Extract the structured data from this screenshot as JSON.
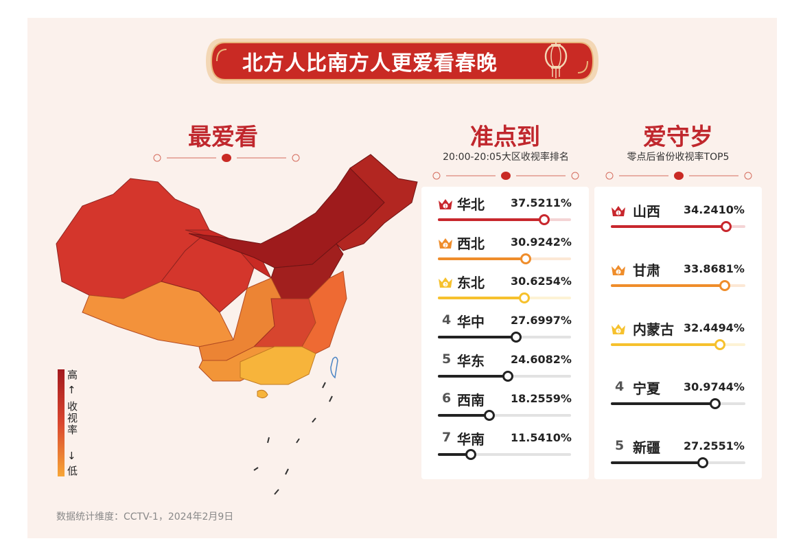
{
  "title": "北方人比南方人更爱看春晚",
  "map_section": {
    "title": "最爱看",
    "legend_high": "高",
    "legend_label": "收视率",
    "legend_low": "低",
    "legend_colors": [
      "#a3191e",
      "#d9462f",
      "#f7a637"
    ]
  },
  "footnote": "数据统计维度：CCTV-1，2024年2月9日",
  "chart_data": [
    {
      "type": "bar",
      "title": "准点到",
      "subtitle": "20:00-20:05大区收视率排名",
      "unit": "%",
      "categories": [
        "华北",
        "西北",
        "东北",
        "华中",
        "华东",
        "西南",
        "华南"
      ],
      "ranks": [
        "1",
        "2",
        "3",
        "4",
        "5",
        "6",
        "7"
      ],
      "values": [
        37.5211,
        30.9242,
        30.6254,
        27.6997,
        24.6082,
        18.2559,
        11.541
      ],
      "labels": [
        "37.5211%",
        "30.9242%",
        "30.6254%",
        "27.6997%",
        "24.6082%",
        "18.2559%",
        "11.5410%"
      ],
      "colors": [
        "#c8272d",
        "#ef8d2b",
        "#f6c12d",
        "#222222",
        "#222222",
        "#222222",
        "#222222"
      ]
    },
    {
      "type": "bar",
      "title": "爱守岁",
      "subtitle": "零点后省份收视率TOP5",
      "unit": "%",
      "categories": [
        "山西",
        "甘肃",
        "内蒙古",
        "宁夏",
        "新疆"
      ],
      "ranks": [
        "1",
        "2",
        "3",
        "4",
        "5"
      ],
      "values": [
        34.241,
        33.8681,
        32.4494,
        30.9744,
        27.2551
      ],
      "labels": [
        "34.2410%",
        "33.8681%",
        "32.4494%",
        "30.9744%",
        "27.2551%"
      ],
      "colors": [
        "#c8272d",
        "#ef8d2b",
        "#f6c12d",
        "#222222",
        "#222222"
      ]
    }
  ]
}
